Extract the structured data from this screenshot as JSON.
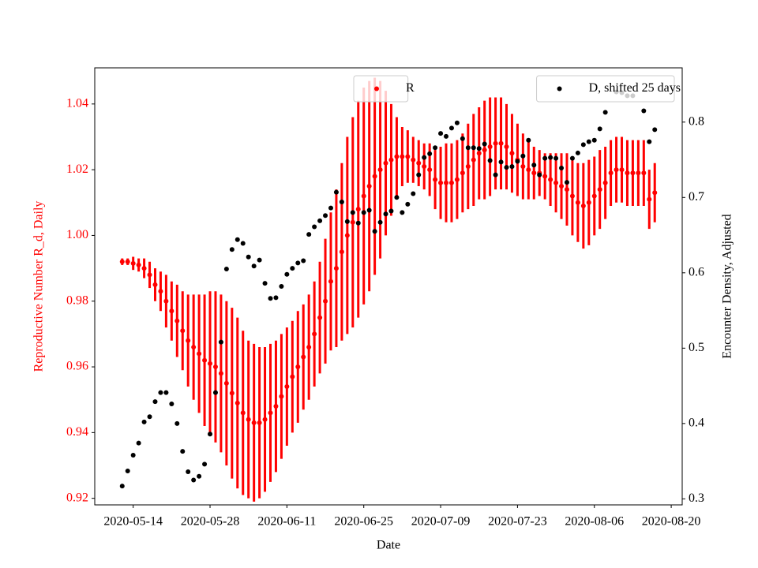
{
  "chart_data": {
    "type": "errorbar-scatter",
    "x_label": "Date",
    "y_label": "Reproductive Number R_d, Daily",
    "y2_label": "Encounter Density, Adjusted",
    "x": [
      "2020-05-12",
      "2020-05-13",
      "2020-05-14",
      "2020-05-15",
      "2020-05-16",
      "2020-05-17",
      "2020-05-18",
      "2020-05-19",
      "2020-05-20",
      "2020-05-21",
      "2020-05-22",
      "2020-05-23",
      "2020-05-24",
      "2020-05-25",
      "2020-05-26",
      "2020-05-27",
      "2020-05-28",
      "2020-05-29",
      "2020-05-30",
      "2020-05-31",
      "2020-06-01",
      "2020-06-02",
      "2020-06-03",
      "2020-06-04",
      "2020-06-05",
      "2020-06-06",
      "2020-06-07",
      "2020-06-08",
      "2020-06-09",
      "2020-06-10",
      "2020-06-11",
      "2020-06-12",
      "2020-06-13",
      "2020-06-14",
      "2020-06-15",
      "2020-06-16",
      "2020-06-17",
      "2020-06-18",
      "2020-06-19",
      "2020-06-20",
      "2020-06-21",
      "2020-06-22",
      "2020-06-23",
      "2020-06-24",
      "2020-06-25",
      "2020-06-26",
      "2020-06-27",
      "2020-06-28",
      "2020-06-29",
      "2020-06-30",
      "2020-07-01",
      "2020-07-02",
      "2020-07-03",
      "2020-07-04",
      "2020-07-05",
      "2020-07-06",
      "2020-07-07",
      "2020-07-08",
      "2020-07-09",
      "2020-07-10",
      "2020-07-11",
      "2020-07-12",
      "2020-07-13",
      "2020-07-14",
      "2020-07-15",
      "2020-07-16",
      "2020-07-17",
      "2020-07-18",
      "2020-07-19",
      "2020-07-20",
      "2020-07-21",
      "2020-07-22",
      "2020-07-23",
      "2020-07-24",
      "2020-07-25",
      "2020-07-26",
      "2020-07-27",
      "2020-07-28",
      "2020-07-29",
      "2020-07-30",
      "2020-07-31",
      "2020-08-01",
      "2020-08-02",
      "2020-08-03",
      "2020-08-04",
      "2020-08-05",
      "2020-08-06",
      "2020-08-07",
      "2020-08-08",
      "2020-08-09",
      "2020-08-10",
      "2020-08-11",
      "2020-08-12",
      "2020-08-13",
      "2020-08-14",
      "2020-08-15",
      "2020-08-16",
      "2020-08-17"
    ],
    "xlim": [
      "2020-05-07",
      "2020-08-22"
    ],
    "xticks": [
      "2020-05-14",
      "2020-05-28",
      "2020-06-11",
      "2020-06-25",
      "2020-07-09",
      "2020-07-23",
      "2020-08-06",
      "2020-08-20"
    ],
    "ylim": [
      0.918,
      1.051
    ],
    "yticks": [
      0.92,
      0.94,
      0.96,
      0.98,
      {
        "value": 1,
        "label": "1.00"
      },
      1.02,
      1.04
    ],
    "y2lim": [
      0.292,
      0.872
    ],
    "y2ticks": [
      0.3,
      0.4,
      0.5,
      0.6,
      0.7,
      0.8
    ],
    "series": [
      {
        "name": "R",
        "color": "red",
        "legend": "upper center",
        "values": [
          0.992,
          0.992,
          0.9915,
          0.991,
          0.99,
          0.988,
          0.985,
          0.983,
          0.98,
          0.977,
          0.974,
          0.971,
          0.968,
          0.966,
          0.964,
          0.962,
          0.961,
          0.96,
          0.958,
          0.955,
          0.952,
          0.949,
          0.946,
          0.944,
          0.943,
          0.943,
          0.944,
          0.946,
          0.948,
          0.951,
          0.954,
          0.957,
          0.96,
          0.963,
          0.966,
          0.97,
          0.975,
          0.98,
          0.986,
          0.99,
          0.995,
          1.0,
          1.004,
          1.008,
          1.012,
          1.015,
          1.018,
          1.02,
          1.022,
          1.023,
          1.024,
          1.024,
          1.024,
          1.023,
          1.022,
          1.021,
          1.02,
          1.017,
          1.016,
          1.016,
          1.016,
          1.017,
          1.019,
          1.021,
          1.023,
          1.025,
          1.026,
          1.027,
          1.028,
          1.028,
          1.027,
          1.025,
          1.023,
          1.021,
          1.02,
          1.019,
          1.019,
          1.018,
          1.017,
          1.016,
          1.015,
          1.014,
          1.012,
          1.01,
          1.009,
          1.01,
          1.012,
          1.014,
          1.016,
          1.019,
          1.02,
          1.02,
          1.019,
          1.019,
          1.019,
          1.019,
          1.011,
          1.013
        ],
        "errors": [
          0.001,
          0.001,
          0.002,
          0.002,
          0.003,
          0.004,
          0.005,
          0.006,
          0.008,
          0.009,
          0.011,
          0.012,
          0.014,
          0.016,
          0.018,
          0.02,
          0.022,
          0.023,
          0.024,
          0.025,
          0.026,
          0.026,
          0.025,
          0.024,
          0.024,
          0.023,
          0.022,
          0.021,
          0.02,
          0.019,
          0.018,
          0.017,
          0.017,
          0.016,
          0.016,
          0.016,
          0.017,
          0.019,
          0.021,
          0.024,
          0.027,
          0.03,
          0.032,
          0.033,
          0.033,
          0.032,
          0.03,
          0.027,
          0.022,
          0.017,
          0.012,
          0.009,
          0.008,
          0.007,
          0.007,
          0.007,
          0.008,
          0.009,
          0.011,
          0.012,
          0.012,
          0.012,
          0.012,
          0.013,
          0.014,
          0.014,
          0.015,
          0.015,
          0.014,
          0.014,
          0.013,
          0.012,
          0.011,
          0.01,
          0.009,
          0.008,
          0.007,
          0.007,
          0.008,
          0.009,
          0.01,
          0.011,
          0.012,
          0.012,
          0.013,
          0.013,
          0.012,
          0.012,
          0.011,
          0.01,
          0.01,
          0.01,
          0.01,
          0.01,
          0.01,
          0.01,
          0.009,
          0.009
        ]
      },
      {
        "name": "D, shifted 25 days",
        "color": "black",
        "axis": "y2",
        "legend": "upper right",
        "values": [
          0.317,
          0.337,
          0.358,
          0.374,
          0.402,
          0.409,
          0.429,
          0.441,
          0.441,
          0.426,
          0.4,
          0.363,
          0.336,
          0.325,
          0.33,
          0.346,
          0.386,
          0.441,
          0.508,
          0.605,
          0.631,
          0.644,
          0.639,
          0.621,
          0.609,
          0.617,
          0.586,
          0.566,
          0.567,
          0.582,
          0.598,
          0.606,
          0.613,
          0.616,
          0.651,
          0.661,
          0.669,
          0.676,
          0.686,
          0.707,
          0.694,
          0.668,
          0.68,
          0.666,
          0.68,
          0.683,
          0.655,
          0.667,
          0.678,
          0.682,
          0.7,
          0.68,
          0.691,
          0.705,
          0.73,
          0.753,
          0.758,
          0.766,
          0.785,
          0.781,
          0.792,
          0.799,
          0.778,
          0.766,
          0.766,
          0.765,
          0.771,
          0.749,
          0.73,
          0.747,
          0.74,
          0.741,
          0.748,
          0.755,
          0.776,
          0.743,
          0.73,
          0.752,
          0.753,
          0.752,
          0.739,
          0.72,
          0.752,
          0.759,
          0.77,
          0.774,
          0.776,
          0.791,
          0.813,
          null,
          0.84,
          0.839,
          0.835,
          0.835,
          null,
          0.815,
          0.774,
          0.79
        ]
      }
    ]
  }
}
